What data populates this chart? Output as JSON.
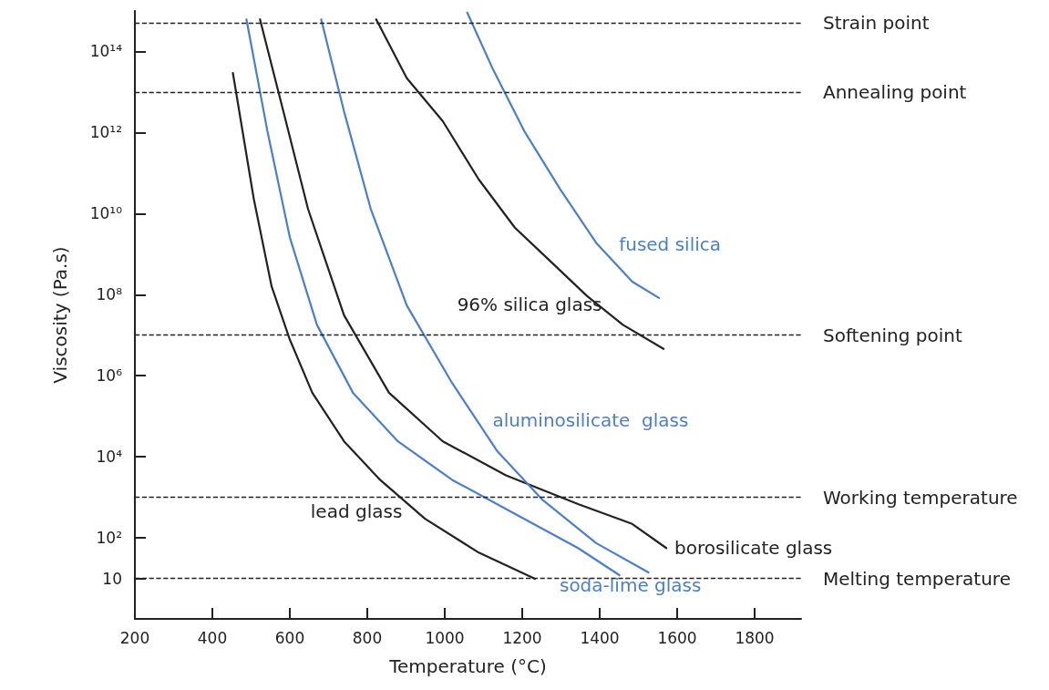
{
  "chart_data": {
    "type": "line",
    "xlabel": "Temperature (°C)",
    "ylabel": "Viscosity (Pa.s)",
    "log": "y",
    "grid": false,
    "legend": false,
    "xlim": [
      200,
      1920
    ],
    "xticks": [
      200,
      400,
      600,
      800,
      1000,
      1200,
      1400,
      1600,
      1800
    ],
    "ylim": [
      1,
      1000000000000000.0
    ],
    "yticks": [
      {
        "value": 10,
        "label": "10"
      },
      {
        "value": 100,
        "label": "10²"
      },
      {
        "value": 10000,
        "label": "10⁴"
      },
      {
        "value": 1000000,
        "label": "10⁶"
      },
      {
        "value": 100000000,
        "label": "10⁸"
      },
      {
        "value": 10000000000,
        "label": "10¹⁰"
      },
      {
        "value": 1000000000000,
        "label": "10¹²"
      },
      {
        "value": 100000000000000,
        "label": "10¹⁴"
      }
    ],
    "series": [
      {
        "name": "lead glass",
        "color": "#222222",
        "x": [
          453,
          507,
          553,
          600,
          658,
          740,
          833,
          949,
          1088,
          1233
        ],
        "values": [
          29500000000000.0,
          23000000000.0,
          160000000.0,
          7800000.0,
          380000.0,
          24000.0,
          2700,
          295,
          43,
          9.8
        ]
      },
      {
        "name": "soda-lime glass",
        "color": "#4a7fcf",
        "x": [
          488,
          542,
          600,
          670,
          763,
          879,
          1019,
          1205,
          1344,
          1451
        ],
        "values": [
          620000000000000.0,
          1100000000000.0,
          2600000000.0,
          18000000.0,
          380000.0,
          24000.0,
          2700,
          295,
          56,
          12
        ]
      },
      {
        "name": "borosilicate glass",
        "color": "#222222",
        "x": [
          523,
          577,
          647,
          740,
          856,
          995,
          1158,
          1344,
          1484,
          1572
        ],
        "values": [
          620000000000000.0,
          5800000000000.0,
          13000000000.0,
          31000000.0,
          380000.0,
          24000.0,
          3500,
          680,
          220,
          56
        ]
      },
      {
        "name": "aluminosilicate  glass",
        "color": "#4a7fcf",
        "x": [
          681,
          740,
          809,
          902,
          1019,
          1135,
          1251,
          1391,
          1526
        ],
        "values": [
          620000000000000.0,
          3300000000000.0,
          13000000000.0,
          54000000.0,
          660000.0,
          14000.0,
          890,
          74,
          14
        ]
      },
      {
        "name": "96% silica glass",
        "color": "#222222",
        "x": [
          823,
          902,
          995,
          1088,
          1181,
          1274,
          1367,
          1460,
          1565
        ],
        "values": [
          620000000000000.0,
          22000000000000.0,
          1900000000000.0,
          69000000000.0,
          4500000000.0,
          650000000.0,
          93000000.0,
          18000000.0,
          4600000.0
        ]
      },
      {
        "name": "fused silica",
        "color": "#4a7fcf",
        "x": [
          1058,
          1123,
          1205,
          1298,
          1391,
          1484,
          1553
        ],
        "values": [
          910000000000000.0,
          39000000000000.0,
          1100000000000.0,
          40000000000.0,
          1900000000.0,
          210000000.0,
          83000000.0
        ]
      }
    ],
    "ref_lines": [
      {
        "axis": "y",
        "value": 500000000000000.0,
        "label": "Strain point",
        "color": "#222222",
        "line_style": "dashed"
      },
      {
        "axis": "y",
        "value": 10000000000000.0,
        "label": "Annealing point",
        "color": "#222222",
        "line_style": "dashed"
      },
      {
        "axis": "y",
        "value": 10000000.0,
        "label": "Softening point",
        "color": "#222222",
        "line_style": "dashed"
      },
      {
        "axis": "y",
        "value": 1000,
        "label": "Working temperature",
        "color": "#222222",
        "line_style": "dashed"
      },
      {
        "axis": "y",
        "value": 10,
        "label": "Melting temperature",
        "color": "#222222",
        "line_style": "dashed"
      }
    ]
  }
}
